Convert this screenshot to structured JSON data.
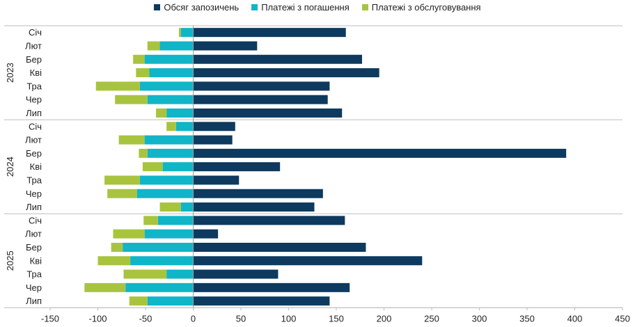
{
  "chart_data": {
    "type": "bar",
    "orientation": "horizontal",
    "stacked": true,
    "xlim": [
      -150,
      450
    ],
    "x_ticks": [
      -150,
      -100,
      -50,
      0,
      50,
      100,
      150,
      200,
      250,
      300,
      350,
      400,
      450
    ],
    "legend_placement": "top-center",
    "grid": false,
    "groups": [
      {
        "label": "2023",
        "months": [
          "Січ",
          "Лют",
          "Бер",
          "Кві",
          "Тра",
          "Чер",
          "Лип"
        ]
      },
      {
        "label": "2024",
        "months": [
          "Січ",
          "Лют",
          "Бер",
          "Кві",
          "Тра",
          "Чер",
          "Лип"
        ]
      },
      {
        "label": "2025",
        "months": [
          "Січ",
          "Лют",
          "Бер",
          "Кві",
          "Тра",
          "Чер",
          "Лип"
        ]
      }
    ],
    "series": [
      {
        "name": "Обсяг запозичень",
        "color": "#0d3a5e",
        "values": [
          160,
          67,
          177,
          195,
          143,
          141,
          156,
          44,
          41,
          391,
          91,
          48,
          136,
          127,
          159,
          26,
          181,
          240,
          89,
          164,
          143
        ]
      },
      {
        "name": "Платежі з погашення",
        "color": "#10b5c8",
        "values": [
          -13,
          -35,
          -51,
          -46,
          -56,
          -48,
          -28,
          -18,
          -51,
          -48,
          -32,
          -56,
          -59,
          -13,
          -37,
          -51,
          -74,
          -66,
          -28,
          -71,
          -48
        ]
      },
      {
        "name": "Платежі з обслуговування",
        "color": "#a8c43f",
        "values": [
          -2,
          -13,
          -12,
          -14,
          -46,
          -34,
          -11,
          -10,
          -27,
          -9,
          -21,
          -37,
          -31,
          -22,
          -15,
          -33,
          -12,
          -34,
          -45,
          -43,
          -19
        ]
      }
    ]
  }
}
